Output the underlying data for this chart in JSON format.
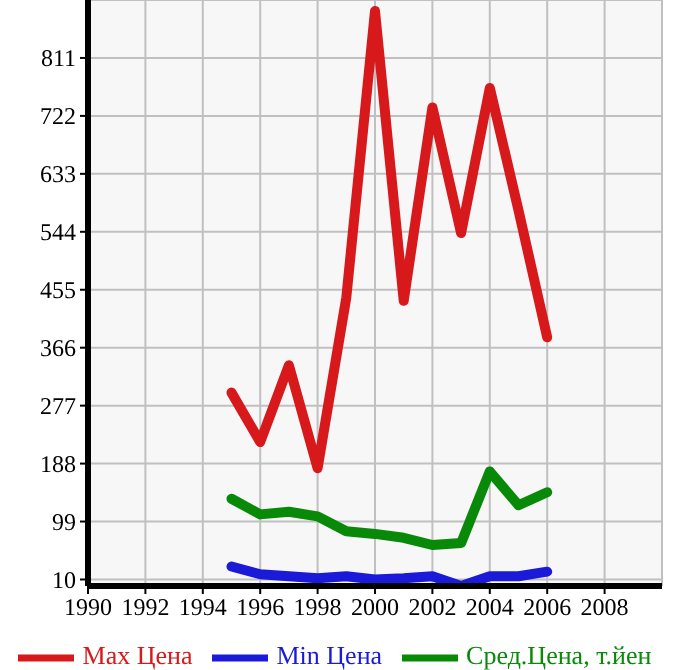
{
  "chart_data": {
    "type": "line",
    "x": [
      1995,
      1996,
      1997,
      1998,
      1999,
      2000,
      2001,
      2002,
      2003,
      2004,
      2005,
      2006
    ],
    "series": [
      {
        "name": "Max Цена",
        "color": "#d7191c",
        "values": [
          297,
          221,
          339,
          181,
          443,
          883,
          438,
          735,
          542,
          765,
          577,
          382
        ]
      },
      {
        "name": "Min Цена",
        "color": "#1a1ad8",
        "values": [
          30,
          18,
          15,
          12,
          15,
          10,
          12,
          15,
          0,
          15,
          15,
          22
        ]
      },
      {
        "name": "Сред.Цена, т.йен",
        "color": "#088a08",
        "values": [
          134,
          110,
          114,
          107,
          84,
          80,
          74,
          63,
          66,
          176,
          124,
          144
        ]
      }
    ],
    "xlim": [
      1990,
      2010
    ],
    "xticks": [
      1990,
      1992,
      1994,
      1996,
      1998,
      2000,
      2002,
      2004,
      2006,
      2008
    ],
    "ylim": [
      0,
      900
    ],
    "yticks": [
      10,
      99,
      188,
      277,
      366,
      455,
      544,
      633,
      722,
      811
    ],
    "grid": true,
    "legend": "bottom",
    "marker": "none",
    "line_style": "solid"
  }
}
